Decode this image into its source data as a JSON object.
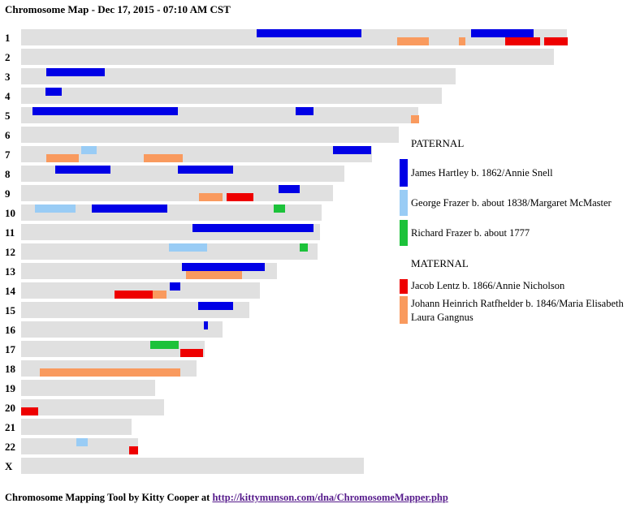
{
  "title": "Chromosome Map - Dec 17, 2015 - 07:10 AM CST",
  "colors": {
    "bar": "#e0e0e0",
    "James Hartley b. 1862/Annie Snell": "#0000e6",
    "George Frazer b. about 1838/Margaret McMaster": "#99ccf5",
    "Richard Frazer b. about 1777": "#1cc23a",
    "Jacob Lentz b. 1866/Annie Nicholson": "#ee0000",
    "Johann Heinrich Ratfhelder b. 1846/Maria Elisabeth Laura Gangnus": "#f99a5e"
  },
  "chromosomes": [
    {
      "label": "1",
      "length": 0.966,
      "segments": [
        {
          "person": "James Hartley b. 1862/Annie Snell",
          "start": 0.417,
          "end": 0.602,
          "lane": "upper"
        },
        {
          "person": "James Hartley b. 1862/Annie Snell",
          "start": 0.796,
          "end": 0.907,
          "lane": "upper"
        },
        {
          "person": "Johann Heinrich Ratfhelder b. 1846/Maria Elisabeth Laura Gangnus",
          "start": 0.665,
          "end": 0.721,
          "lane": "lower"
        },
        {
          "person": "Johann Heinrich Ratfhelder b. 1846/Maria Elisabeth Laura Gangnus",
          "start": 0.774,
          "end": 0.786,
          "lane": "lower"
        },
        {
          "person": "Jacob Lentz b. 1866/Annie Nicholson",
          "start": 0.857,
          "end": 0.919,
          "lane": "lower"
        },
        {
          "person": "Jacob Lentz b. 1866/Annie Nicholson",
          "start": 0.925,
          "end": 0.966,
          "lane": "lower"
        }
      ]
    },
    {
      "label": "2",
      "length": 0.943,
      "segments": []
    },
    {
      "label": "3",
      "length": 0.769,
      "segments": [
        {
          "person": "James Hartley b. 1862/Annie Snell",
          "start": 0.045,
          "end": 0.148,
          "lane": "upper"
        }
      ]
    },
    {
      "label": "4",
      "length": 0.744,
      "segments": [
        {
          "person": "James Hartley b. 1862/Annie Snell",
          "start": 0.043,
          "end": 0.072,
          "lane": "upper"
        }
      ]
    },
    {
      "label": "5",
      "length": 0.703,
      "segments": [
        {
          "person": "James Hartley b. 1862/Annie Snell",
          "start": 0.02,
          "end": 0.277,
          "lane": "upper"
        },
        {
          "person": "James Hartley b. 1862/Annie Snell",
          "start": 0.485,
          "end": 0.517,
          "lane": "upper"
        },
        {
          "person": "Johann Heinrich Ratfhelder b. 1846/Maria Elisabeth Laura Gangnus",
          "start": 0.689,
          "end": 0.703,
          "lane": "lower"
        }
      ]
    },
    {
      "label": "6",
      "length": 0.668,
      "segments": []
    },
    {
      "label": "7",
      "length": 0.621,
      "segments": [
        {
          "person": "George Frazer b. about 1838/Margaret McMaster",
          "start": 0.106,
          "end": 0.134,
          "lane": "upper"
        },
        {
          "person": "James Hartley b. 1862/Annie Snell",
          "start": 0.552,
          "end": 0.62,
          "lane": "upper"
        },
        {
          "person": "Johann Heinrich Ratfhelder b. 1846/Maria Elisabeth Laura Gangnus",
          "start": 0.044,
          "end": 0.102,
          "lane": "lower"
        },
        {
          "person": "Johann Heinrich Ratfhelder b. 1846/Maria Elisabeth Laura Gangnus",
          "start": 0.217,
          "end": 0.286,
          "lane": "lower"
        }
      ]
    },
    {
      "label": "8",
      "length": 0.572,
      "segments": [
        {
          "person": "James Hartley b. 1862/Annie Snell",
          "start": 0.06,
          "end": 0.157,
          "lane": "upper"
        },
        {
          "person": "James Hartley b. 1862/Annie Snell",
          "start": 0.277,
          "end": 0.375,
          "lane": "upper"
        }
      ]
    },
    {
      "label": "9",
      "length": 0.552,
      "segments": [
        {
          "person": "James Hartley b. 1862/Annie Snell",
          "start": 0.455,
          "end": 0.492,
          "lane": "upper"
        },
        {
          "person": "Johann Heinrich Ratfhelder b. 1846/Maria Elisabeth Laura Gangnus",
          "start": 0.315,
          "end": 0.356,
          "lane": "lower"
        },
        {
          "person": "Jacob Lentz b. 1866/Annie Nicholson",
          "start": 0.364,
          "end": 0.411,
          "lane": "lower"
        }
      ]
    },
    {
      "label": "10",
      "length": 0.531,
      "segments": [
        {
          "person": "George Frazer b. about 1838/Margaret McMaster",
          "start": 0.025,
          "end": 0.097,
          "lane": "upper"
        },
        {
          "person": "James Hartley b. 1862/Annie Snell",
          "start": 0.125,
          "end": 0.259,
          "lane": "upper"
        },
        {
          "person": "Richard Frazer b. about 1777",
          "start": 0.447,
          "end": 0.467,
          "lane": "upper"
        }
      ]
    },
    {
      "label": "11",
      "length": 0.529,
      "segments": [
        {
          "person": "James Hartley b. 1862/Annie Snell",
          "start": 0.303,
          "end": 0.517,
          "lane": "upper"
        }
      ]
    },
    {
      "label": "12",
      "length": 0.524,
      "segments": [
        {
          "person": "George Frazer b. about 1838/Margaret McMaster",
          "start": 0.262,
          "end": 0.329,
          "lane": "upper"
        },
        {
          "person": "Richard Frazer b. about 1777",
          "start": 0.493,
          "end": 0.507,
          "lane": "upper"
        }
      ]
    },
    {
      "label": "13",
      "length": 0.453,
      "segments": [
        {
          "person": "James Hartley b. 1862/Annie Snell",
          "start": 0.285,
          "end": 0.431,
          "lane": "upper"
        },
        {
          "person": "Johann Heinrich Ratfhelder b. 1846/Maria Elisabeth Laura Gangnus",
          "start": 0.291,
          "end": 0.39,
          "lane": "lower"
        }
      ]
    },
    {
      "label": "14",
      "length": 0.422,
      "segments": [
        {
          "person": "James Hartley b. 1862/Annie Snell",
          "start": 0.263,
          "end": 0.282,
          "lane": "upper"
        },
        {
          "person": "Jacob Lentz b. 1866/Annie Nicholson",
          "start": 0.165,
          "end": 0.233,
          "lane": "lower"
        },
        {
          "person": "Johann Heinrich Ratfhelder b. 1846/Maria Elisabeth Laura Gangnus",
          "start": 0.233,
          "end": 0.258,
          "lane": "lower"
        }
      ]
    },
    {
      "label": "15",
      "length": 0.404,
      "segments": [
        {
          "person": "James Hartley b. 1862/Annie Snell",
          "start": 0.313,
          "end": 0.375,
          "lane": "upper"
        }
      ]
    },
    {
      "label": "16",
      "length": 0.357,
      "segments": [
        {
          "person": "James Hartley b. 1862/Annie Snell",
          "start": 0.323,
          "end": 0.33,
          "lane": "upper"
        }
      ]
    },
    {
      "label": "17",
      "length": 0.324,
      "segments": [
        {
          "person": "Richard Frazer b. about 1777",
          "start": 0.228,
          "end": 0.278,
          "lane": "upper"
        },
        {
          "person": "Jacob Lentz b. 1866/Annie Nicholson",
          "start": 0.282,
          "end": 0.322,
          "lane": "lower"
        }
      ]
    },
    {
      "label": "18",
      "length": 0.31,
      "segments": [
        {
          "person": "Johann Heinrich Ratfhelder b. 1846/Maria Elisabeth Laura Gangnus",
          "start": 0.033,
          "end": 0.282,
          "lane": "lower"
        }
      ]
    },
    {
      "label": "19",
      "length": 0.237,
      "segments": []
    },
    {
      "label": "20",
      "length": 0.253,
      "segments": [
        {
          "person": "Jacob Lentz b. 1866/Annie Nicholson",
          "start": 0.0,
          "end": 0.03,
          "lane": "lower"
        }
      ]
    },
    {
      "label": "21",
      "length": 0.195,
      "segments": []
    },
    {
      "label": "22",
      "length": 0.207,
      "segments": [
        {
          "person": "George Frazer b. about 1838/Margaret McMaster",
          "start": 0.098,
          "end": 0.118,
          "lane": "upper"
        },
        {
          "person": "Jacob Lentz b. 1866/Annie Nicholson",
          "start": 0.191,
          "end": 0.207,
          "lane": "lower"
        }
      ]
    },
    {
      "label": "X",
      "length": 0.606,
      "segments": []
    }
  ],
  "legend": {
    "paternal_heading": "PATERNAL",
    "paternal": [
      "James Hartley b. 1862/Annie Snell",
      "George Frazer b. about 1838/Margaret McMaster",
      "Richard Frazer b. about 1777"
    ],
    "maternal_heading": "MATERNAL",
    "maternal": [
      "Jacob Lentz b. 1866/Annie Nicholson",
      "Johann Heinrich Ratfhelder b. 1846/Maria Elisabeth Laura Gangnus"
    ]
  },
  "footer": {
    "text": "Chromosome Mapping Tool by Kitty Cooper at ",
    "link": "http://kittymunson.com/dna/ChromosomeMapper.php"
  }
}
